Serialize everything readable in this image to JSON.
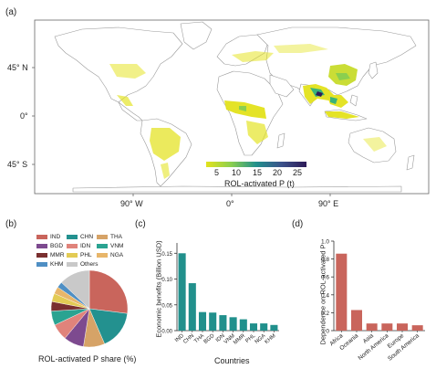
{
  "panels": {
    "a": "(a)",
    "b": "(b)",
    "c": "(c)",
    "d": "(d)"
  },
  "map": {
    "lat_ticks": [
      "45° N",
      "0°",
      "45° S"
    ],
    "lon_ticks": [
      "90° W",
      "0°",
      "90° E"
    ],
    "colorbar_ticks": [
      "5",
      "10",
      "15",
      "20",
      "25"
    ],
    "colorbar_label": "ROL-activated P (t)",
    "colors": {
      "land": "#ffffff",
      "border": "#9a9a9a",
      "ocean": "#ffffff",
      "low": "#e3e21c",
      "mid": "#3ab37a",
      "high": "#2e1a57"
    }
  },
  "chart_data": [
    {
      "type": "pie",
      "xlabel": "ROL-activated P share (%)",
      "categories": [
        "IND",
        "CHN",
        "THA",
        "BGD",
        "IDN",
        "VNM",
        "MMR",
        "PHL",
        "NGA",
        "KHM",
        "Others"
      ],
      "values": [
        27.0,
        16.5,
        9.0,
        8.5,
        7.0,
        6.0,
        4.0,
        3.5,
        3.0,
        2.5,
        13.0
      ],
      "colors": [
        "#c9655c",
        "#23918f",
        "#d6a367",
        "#7d4a8f",
        "#e0837b",
        "#2aa391",
        "#7a2f2f",
        "#e3cb54",
        "#e8b66a",
        "#4f8fc4",
        "#c9c9c9"
      ]
    },
    {
      "type": "bar",
      "categories": [
        "IND",
        "CHN",
        "THA",
        "BGD",
        "IDN",
        "VNM",
        "MMR",
        "PHL",
        "NGA",
        "KHM"
      ],
      "values": [
        0.15,
        0.092,
        0.036,
        0.035,
        0.03,
        0.026,
        0.022,
        0.014,
        0.014,
        0.011
      ],
      "xlabel": "Countries",
      "ylabel": "Economic benefits (Billion USD)",
      "ylim": [
        0,
        0.17
      ],
      "yticks": [
        "0.00",
        "0.05",
        "0.10",
        "0.15"
      ],
      "color": "#21908c"
    },
    {
      "type": "bar",
      "categories": [
        "Africa",
        "Oceania",
        "Asia",
        "North America",
        "Europe",
        "South America"
      ],
      "values": [
        0.86,
        0.23,
        0.08,
        0.08,
        0.08,
        0.06
      ],
      "ylabel": "Dependence on ROL-activated P",
      "ylim": [
        0,
        1.0
      ],
      "yticks": [
        "0",
        "0.2",
        "0.4",
        "0.6",
        "0.8",
        "1.0"
      ],
      "color": "#c9655c"
    }
  ]
}
